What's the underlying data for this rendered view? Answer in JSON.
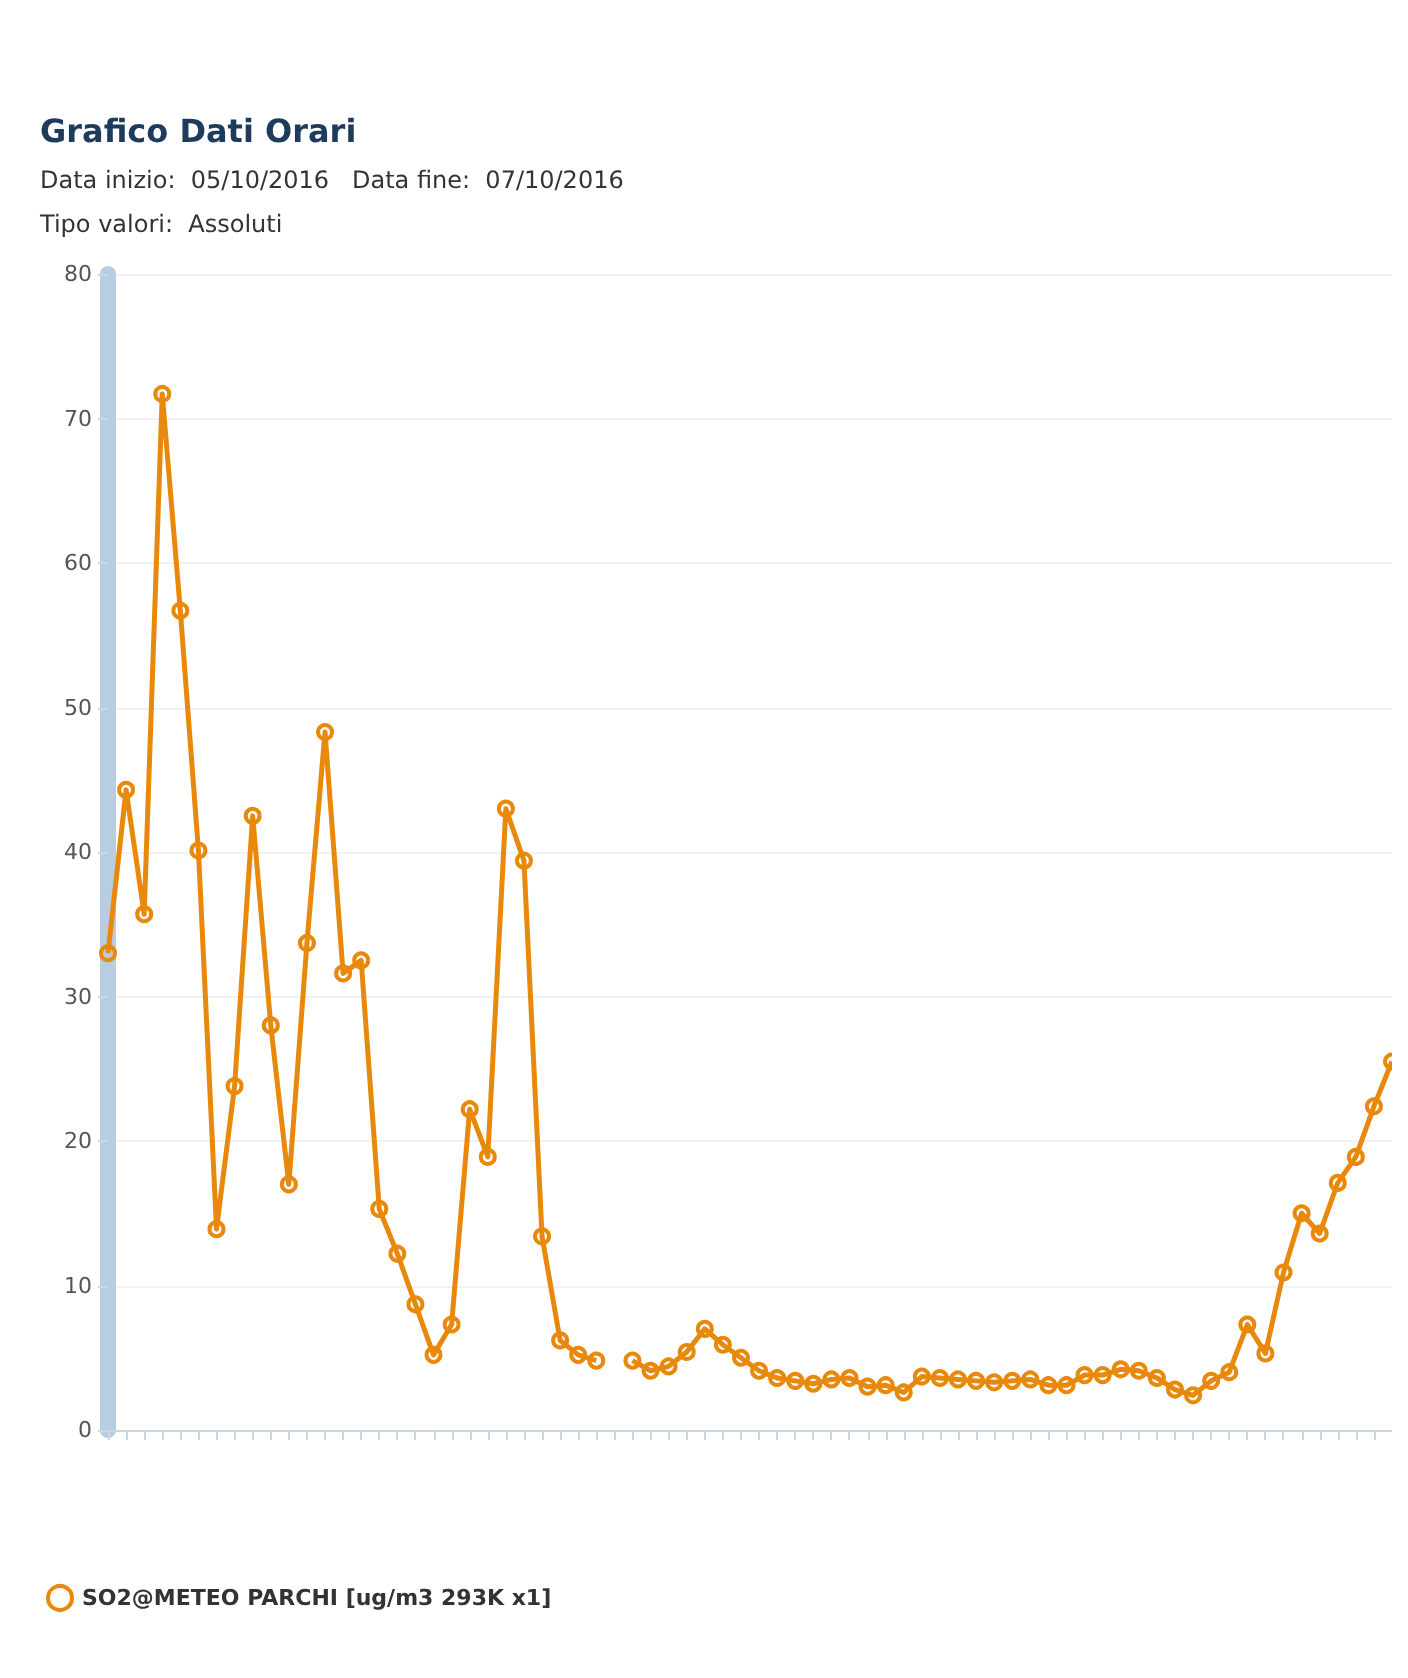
{
  "chart_data": {
    "type": "line",
    "title": "Grafico Dati Orari",
    "subtitle": "Data inizio:  05/10/2016   Data fine:  07/10/2016",
    "annotations": [
      "Tipo valori:  Assoluti"
    ],
    "categories": [
      null,
      null,
      null,
      null,
      null,
      null,
      null,
      null,
      null,
      null,
      null,
      null,
      null,
      null,
      null,
      null,
      null,
      null,
      null,
      null,
      null,
      null,
      null,
      null,
      null,
      null,
      null,
      null,
      null,
      null,
      null,
      null,
      null,
      null,
      null,
      null,
      null,
      null,
      null,
      null,
      null,
      null,
      null,
      null,
      null,
      null,
      null,
      null,
      null,
      null,
      null,
      null,
      null,
      null,
      null,
      null,
      null,
      null,
      null,
      null,
      null,
      null,
      null,
      null,
      null,
      null,
      null,
      null,
      null,
      null,
      null,
      null
    ],
    "series": [
      {
        "name": "SO2@METEO PARCHI [ug/m3 293K x1]",
        "color": "#e8890c",
        "values": [
          33,
          44.3,
          35.7,
          71.7,
          56.7,
          40.1,
          13.9,
          23.8,
          42.5,
          28,
          17,
          33.7,
          48.3,
          31.6,
          32.5,
          15.3,
          12.2,
          8.7,
          5.2,
          7.3,
          22.2,
          18.9,
          43,
          39.4,
          13.4,
          6.2,
          5.2,
          4.8,
          null,
          null,
          null,
          null,
          null,
          null,
          null,
          null,
          null,
          null,
          null,
          null,
          null,
          null,
          null,
          null,
          null,
          null,
          null,
          null,
          null,
          null,
          null,
          null,
          null,
          null,
          null,
          null,
          null,
          null,
          null,
          null,
          null,
          null,
          null,
          null,
          null,
          null,
          null,
          null,
          null,
          null,
          null,
          null
        ]
      },
      {
        "color": "#e8890c",
        "values": [
          null,
          null,
          null,
          null,
          null,
          null,
          null,
          null,
          null,
          null,
          null,
          null,
          null,
          null,
          null,
          null,
          null,
          null,
          null,
          null,
          null,
          null,
          null,
          null,
          null,
          null,
          null,
          null,
          null,
          4.8,
          4.1,
          4.4,
          5.4,
          7,
          5.9,
          5,
          4.1,
          3.6,
          3.4,
          3.2,
          3.5,
          3.6,
          3,
          3.1,
          2.6,
          3.7,
          3.6,
          3.5,
          3.4,
          3.3,
          3.4,
          3.5,
          3.1,
          3.1,
          3.8,
          3.8,
          4.2,
          4.1,
          3.6,
          2.8,
          2.4,
          3.4,
          4,
          7.3,
          5.3,
          10.9,
          15,
          13.6,
          17.1,
          18.9,
          22.4,
          25.5
        ]
      }
    ],
    "ylim": [
      0,
      80
    ],
    "yticks": [
      0,
      10,
      20,
      30,
      40,
      50,
      60,
      70,
      80
    ],
    "grid": "y",
    "legend": "bottom left",
    "marker": "circle",
    "line_style": "solid",
    "tick_labels": "y"
  }
}
